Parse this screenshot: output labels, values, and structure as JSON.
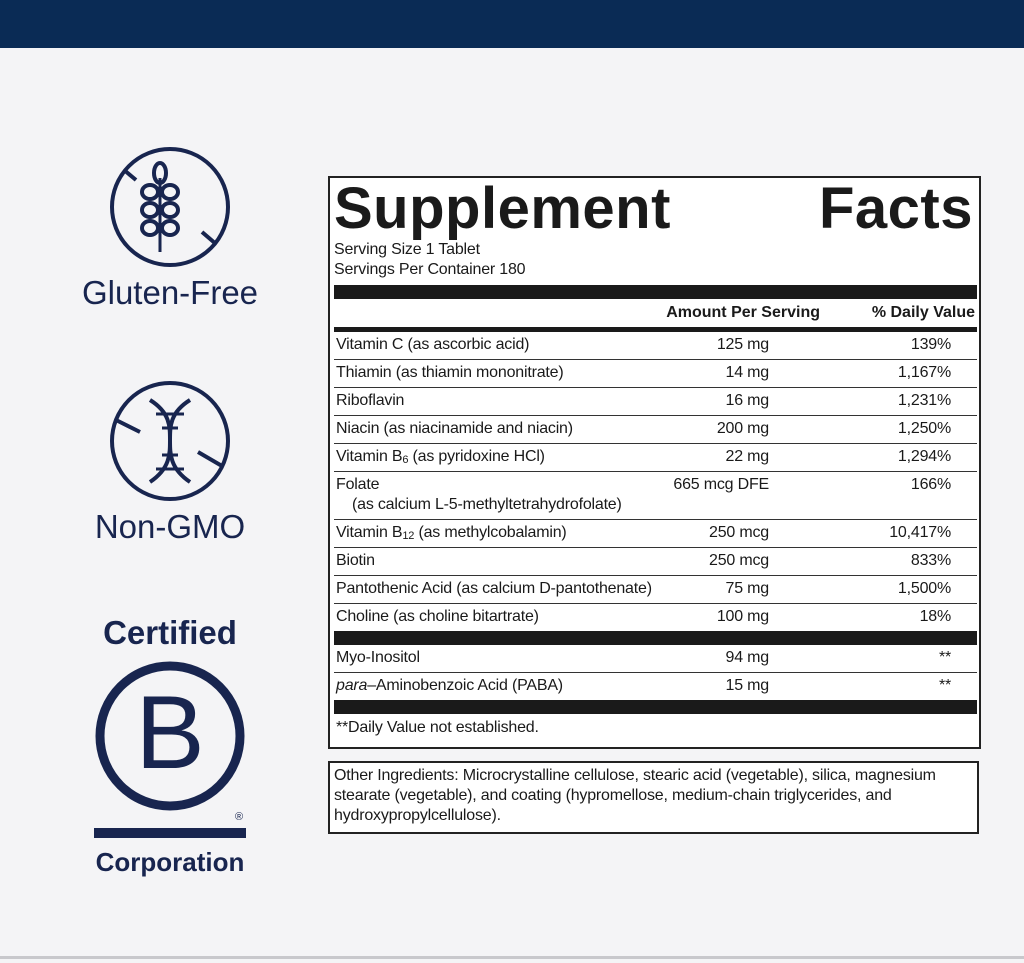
{
  "badges": {
    "gluten_free": "Gluten-Free",
    "non_gmo": "Non-GMO",
    "certified": "Certified",
    "b_letter": "B",
    "registered": "®",
    "corporation": "Corporation"
  },
  "facts": {
    "title": "Supplement Facts",
    "serving_size": "Serving Size 1 Tablet",
    "servings_per_container": "Servings Per Container 180",
    "header": {
      "amount": "Amount Per Serving",
      "daily_value": "% Daily Value"
    },
    "groups": [
      {
        "rows": [
          {
            "name": [
              {
                "text": "Vitamin C (as ascorbic acid)"
              }
            ],
            "amount": "125 mg",
            "dv": "139%"
          },
          {
            "name": [
              {
                "text": "Thiamin (as thiamin mononitrate)"
              }
            ],
            "amount": "14 mg",
            "dv": "1,167%"
          },
          {
            "name": [
              {
                "text": "Riboflavin"
              }
            ],
            "amount": "16 mg",
            "dv": "1,231%"
          },
          {
            "name": [
              {
                "text": "Niacin (as niacinamide and niacin)"
              }
            ],
            "amount": "200 mg",
            "dv": "1,250%"
          },
          {
            "name": [
              {
                "text": "Vitamin B"
              },
              {
                "text": "6",
                "sub": true
              },
              {
                "text": " (as pyridoxine HCl)"
              }
            ],
            "amount": "22 mg",
            "dv": "1,294%"
          },
          {
            "name": [
              {
                "text": "Folate"
              }
            ],
            "detail": "(as calcium L-5-methyltetrahydrofolate)",
            "amount": "665 mcg DFE",
            "dv": "166%"
          },
          {
            "name": [
              {
                "text": "Vitamin B"
              },
              {
                "text": "12",
                "sub": true
              },
              {
                "text": " (as methylcobalamin)"
              }
            ],
            "amount": "250 mcg",
            "dv": "10,417%"
          },
          {
            "name": [
              {
                "text": "Biotin"
              }
            ],
            "amount": "250 mcg",
            "dv": "833%"
          },
          {
            "name": [
              {
                "text": "Pantothenic Acid (as calcium D-pantothenate)"
              }
            ],
            "amount": "75 mg",
            "dv": "1,500%"
          },
          {
            "name": [
              {
                "text": "Choline (as choline bitartrate)"
              }
            ],
            "amount": "100 mg",
            "dv": "18%"
          }
        ]
      },
      {
        "rows": [
          {
            "name": [
              {
                "text": "Myo-Inositol"
              }
            ],
            "amount": "94 mg",
            "dv": "**"
          },
          {
            "name": [
              {
                "text": "para",
                "italic": true
              },
              {
                "text": "–Aminobenzoic Acid (PABA)"
              }
            ],
            "amount": "15 mg",
            "dv": "**"
          }
        ]
      }
    ],
    "footnote": "**Daily Value not established."
  },
  "other_ingredients": "Other Ingredients: Microcrystalline cellulose, stearic acid (vegetable), silica, magnesium stearate (vegetable), and coating (hypromellose, medium-chain triglycerides, and hydroxypropylcellulose)."
}
